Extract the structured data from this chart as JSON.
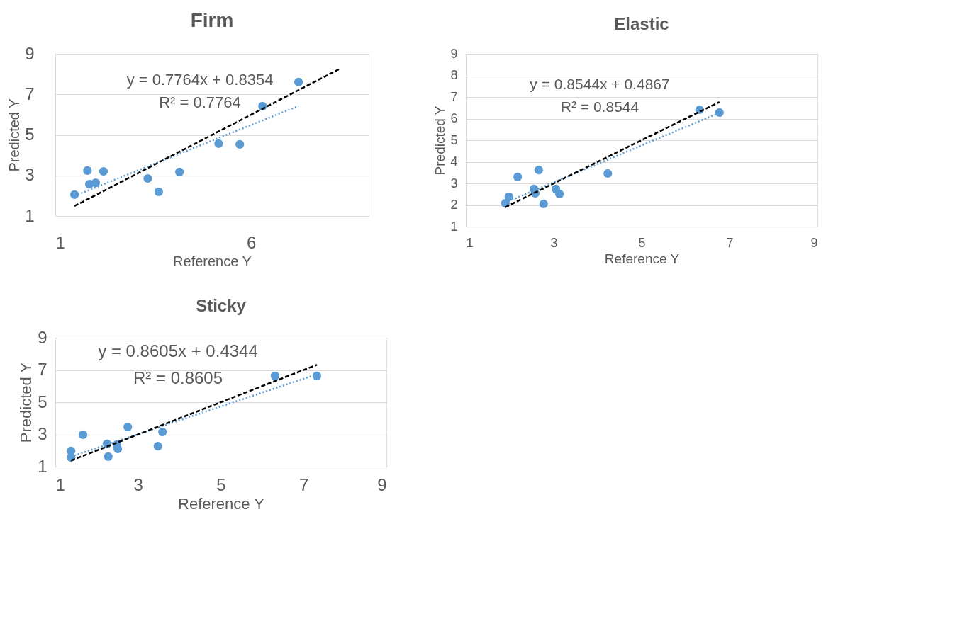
{
  "chart_data": [
    {
      "type": "scatter",
      "title": "Firm",
      "xlabel": "Reference Y",
      "ylabel": "Predicted Y",
      "xlim": [
        1,
        9
      ],
      "ylim": [
        1,
        9
      ],
      "xticks": [
        1,
        6
      ],
      "yticks": [
        1,
        3,
        5,
        7,
        9
      ],
      "grid": "y",
      "marker": "circle",
      "annotations": [
        "y = 0.7764x + 0.8354",
        "R² = 0.7764"
      ],
      "series": [
        {
          "type": "scatter",
          "color": "#5b9bd5",
          "x": [
            1.49,
            1.82,
            1.87,
            2.03,
            2.23,
            3.36,
            3.64,
            4.17,
            5.17,
            5.71,
            6.29,
            7.21
          ],
          "values": [
            2.05,
            3.24,
            2.57,
            2.64,
            3.2,
            2.85,
            2.19,
            3.17,
            4.57,
            4.53,
            6.42,
            7.61
          ]
        },
        {
          "type": "line",
          "color": "#5b9bd5",
          "line_style": "dotted",
          "marker": "none",
          "x": [
            1.49,
            7.21
          ],
          "values": [
            1.99,
            6.43
          ]
        },
        {
          "type": "line",
          "color": "#000000",
          "line_style": "dashed",
          "marker": "none",
          "x": [
            1.49,
            8.25
          ],
          "values": [
            1.49,
            8.25
          ]
        }
      ]
    },
    {
      "type": "scatter",
      "title": "Elastic",
      "xlabel": "Reference Y",
      "ylabel": "Predicted Y",
      "xlim": [
        1,
        9
      ],
      "ylim": [
        1,
        9
      ],
      "xticks": [
        1,
        3,
        5,
        7,
        9
      ],
      "yticks": [
        1,
        2,
        3,
        4,
        5,
        6,
        7,
        8,
        9
      ],
      "grid": "y",
      "marker": "circle",
      "annotations": [
        "y = 0.8544x + 0.4867",
        "R² = 0.8544"
      ],
      "series": [
        {
          "type": "scatter",
          "color": "#5b9bd5",
          "x": [
            1.9,
            1.98,
            2.18,
            2.55,
            2.58,
            2.66,
            2.77,
            3.05,
            3.13,
            4.23,
            6.32,
            6.77
          ],
          "values": [
            2.08,
            2.38,
            3.3,
            2.74,
            2.54,
            3.62,
            2.05,
            2.74,
            2.51,
            3.46,
            6.41,
            6.28
          ]
        },
        {
          "type": "line",
          "color": "#5b9bd5",
          "line_style": "dotted",
          "marker": "none",
          "x": [
            1.9,
            6.77
          ],
          "values": [
            2.11,
            6.27
          ]
        },
        {
          "type": "line",
          "color": "#000000",
          "line_style": "dashed",
          "marker": "none",
          "x": [
            1.9,
            6.77
          ],
          "values": [
            1.9,
            6.77
          ]
        }
      ]
    },
    {
      "type": "scatter",
      "title": "Sticky",
      "xlabel": "Reference Y",
      "ylabel": "Predicted Y",
      "xlim": [
        1,
        9
      ],
      "ylim": [
        1,
        9
      ],
      "xticks": [
        1,
        3,
        5,
        7,
        9
      ],
      "yticks": [
        1,
        3,
        5,
        7,
        9
      ],
      "grid": "y",
      "marker": "circle",
      "annotations": [
        "y = 0.8605x + 0.4344",
        "R² = 0.8605"
      ],
      "series": [
        {
          "type": "scatter",
          "color": "#5b9bd5",
          "x": [
            1.38,
            1.38,
            1.67,
            2.25,
            2.28,
            2.49,
            2.51,
            2.75,
            3.48,
            3.59,
            6.31,
            7.32
          ],
          "values": [
            1.97,
            1.57,
            2.98,
            2.41,
            1.62,
            2.36,
            2.1,
            3.46,
            2.27,
            3.15,
            6.63,
            6.63
          ]
        },
        {
          "type": "line",
          "color": "#5b9bd5",
          "line_style": "dotted",
          "marker": "none",
          "x": [
            1.38,
            7.32
          ],
          "values": [
            1.62,
            6.73
          ]
        },
        {
          "type": "line",
          "color": "#000000",
          "line_style": "dashed",
          "marker": "none",
          "x": [
            1.38,
            7.32
          ],
          "values": [
            1.38,
            7.32
          ]
        }
      ]
    }
  ]
}
